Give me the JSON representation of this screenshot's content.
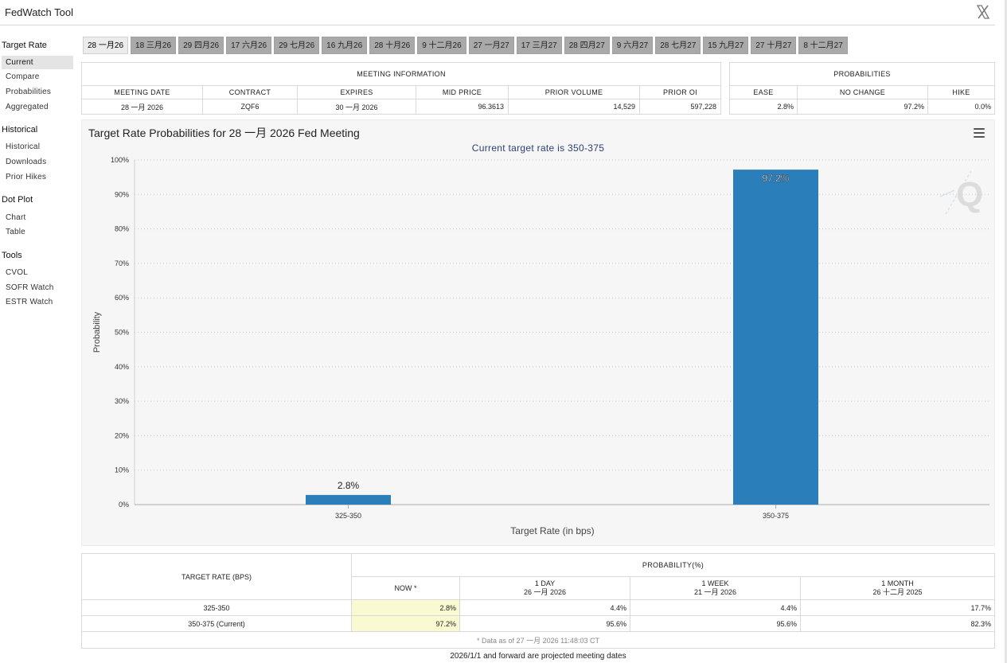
{
  "app": {
    "title": "FedWatch Tool"
  },
  "sidebar": {
    "target_rate": {
      "heading": "Target Rate",
      "items": [
        "Current",
        "Compare",
        "Probabilities",
        "Aggregated"
      ]
    },
    "historical": {
      "heading": "Historical",
      "items": [
        "Historical",
        "Downloads",
        "Prior Hikes"
      ]
    },
    "dot_plot": {
      "heading": "Dot Plot",
      "items": [
        "Chart",
        "Table"
      ]
    },
    "tools": {
      "heading": "Tools",
      "items": [
        "CVOL",
        "SOFR Watch",
        "ESTR Watch"
      ]
    }
  },
  "tabs": [
    "28 一月26",
    "18 三月26",
    "29 四月26",
    "17 六月26",
    "29 七月26",
    "16 九月26",
    "28 十月26",
    "9 十二月26",
    "27 一月27",
    "17 三月27",
    "28 四月27",
    "9 六月27",
    "28 七月27",
    "15 九月27",
    "27 十月27",
    "8 十二月27"
  ],
  "meeting_info": {
    "heading": "MEETING INFORMATION",
    "headers": [
      "MEETING DATE",
      "CONTRACT",
      "EXPIRES",
      "MID PRICE",
      "PRIOR VOLUME",
      "PRIOR OI"
    ],
    "row": [
      "28 一月 2026",
      "ZQF6",
      "30 一月 2026",
      "96.3613",
      "14,529",
      "597,228"
    ]
  },
  "probabilities": {
    "heading": "PROBABILITIES",
    "headers": [
      "EASE",
      "NO CHANGE",
      "HIKE"
    ],
    "row": [
      "2.8%",
      "97.2%",
      "0.0%"
    ]
  },
  "chart_data": {
    "type": "bar",
    "title": "Target Rate Probabilities for 28 一月 2026 Fed Meeting",
    "subtitle": "Current target rate is 350-375",
    "categories": [
      "325-350",
      "350-375"
    ],
    "values": [
      2.8,
      97.2
    ],
    "data_labels": [
      "2.8%",
      "97.2%"
    ],
    "xlabel": "Target Rate (in bps)",
    "ylabel": "Probability",
    "ylim": [
      0,
      100
    ],
    "yticks": [
      "0%",
      "10%",
      "20%",
      "30%",
      "40%",
      "50%",
      "60%",
      "70%",
      "80%",
      "90%",
      "100%"
    ],
    "bar_color": "#2a7fba",
    "grid": true
  },
  "rate_table": {
    "col_rate": "TARGET RATE (BPS)",
    "col_prob": "PROBABILITY(%)",
    "subcols": [
      {
        "label": "NOW *",
        "date": ""
      },
      {
        "label": "1 DAY",
        "date": "26 一月 2026"
      },
      {
        "label": "1 WEEK",
        "date": "21 一月 2026"
      },
      {
        "label": "1 MONTH",
        "date": "26 十二月 2025"
      }
    ],
    "rows": [
      {
        "rate": "325-350",
        "values": [
          "2.8%",
          "4.4%",
          "4.4%",
          "17.7%"
        ]
      },
      {
        "rate": "350-375 (Current)",
        "values": [
          "97.2%",
          "95.6%",
          "95.6%",
          "82.3%"
        ]
      }
    ],
    "note": "* Data as of 27 一月 2026 11:48:03 CT"
  },
  "footer": {
    "note": "2026/1/1 and forward are projected meeting dates"
  },
  "colors": {
    "accent": "#2a7fba",
    "now_highlight": "#fafad2",
    "tab_inactive": "#a9a9a9"
  }
}
